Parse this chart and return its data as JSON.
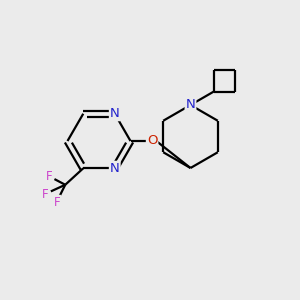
{
  "background_color": "#ebebeb",
  "bond_color": "#000000",
  "N_color": "#2222cc",
  "O_color": "#cc2200",
  "F_color": "#cc44cc",
  "line_width": 1.6,
  "figsize": [
    3.0,
    3.0
  ],
  "dpi": 100,
  "xlim": [
    0,
    10
  ],
  "ylim": [
    0,
    10
  ],
  "font_size": 9.5
}
